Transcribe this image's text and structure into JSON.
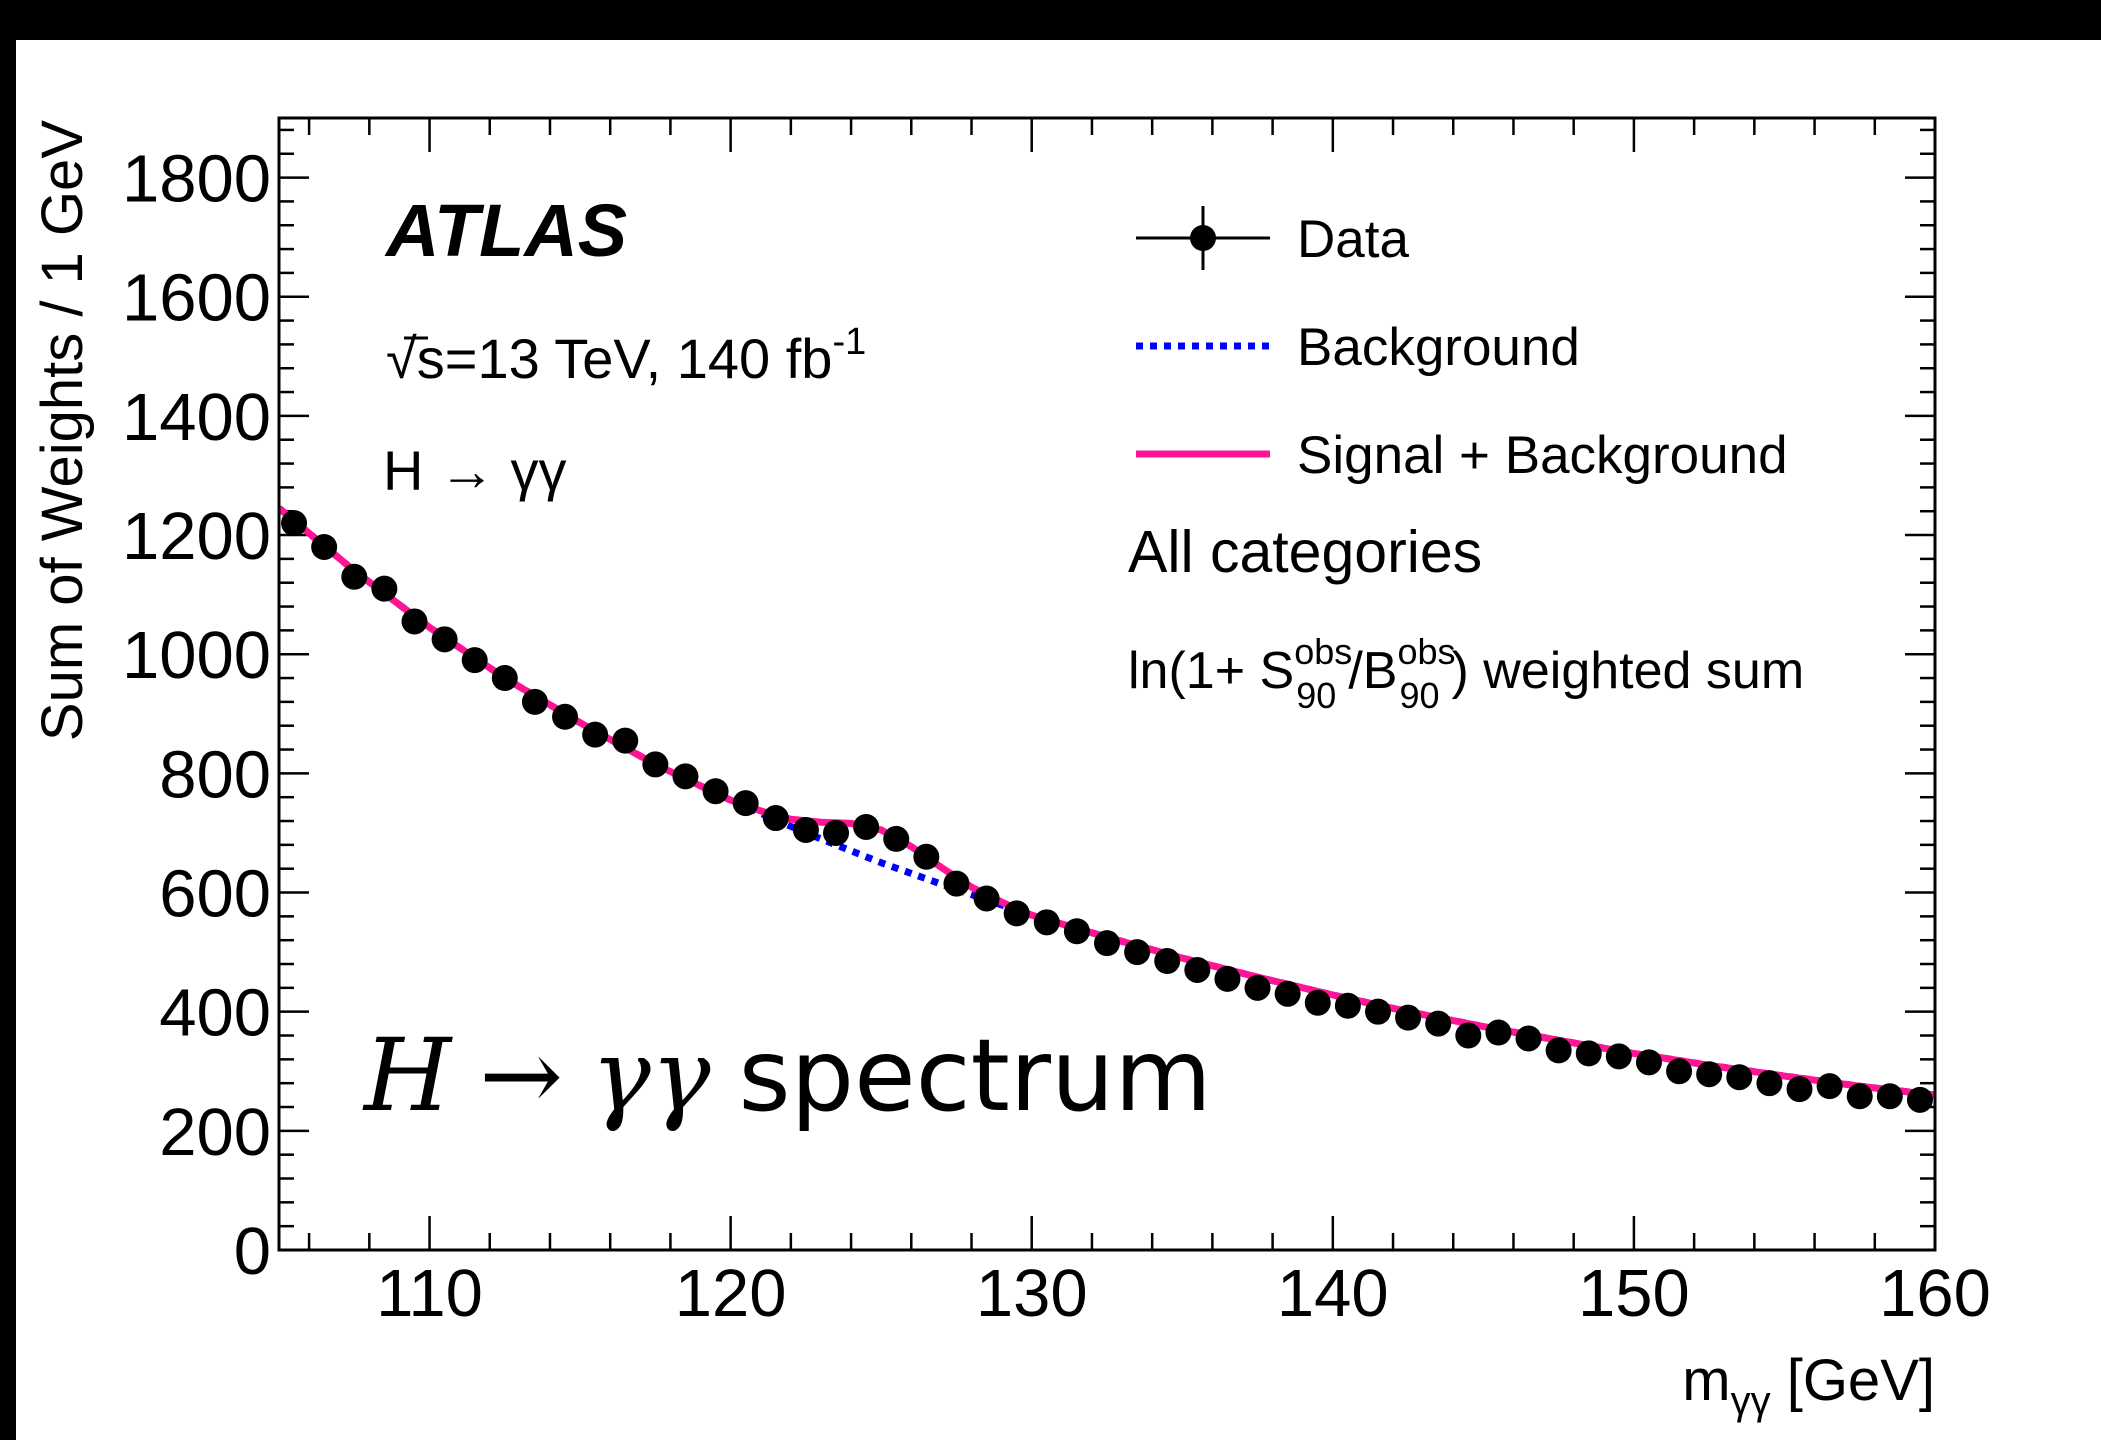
{
  "chart_data": {
    "type": "line",
    "title": [
      "H",
      "→",
      "γγ",
      "spectrum"
    ],
    "experiment": "ATLAS",
    "energy": {
      "text": "√s=13 TeV, 140 fb",
      "sup": "-1"
    },
    "process": "H → γγ",
    "category": "All categories",
    "weighting": {
      "pre": "ln(1+ S",
      "s_sup": "obs",
      "s_sub": "90",
      "mid": "/B",
      "b_sup": "obs",
      "b_sub": "90",
      "post": ") weighted sum"
    },
    "ylabel": "Sum of Weights / 1 GeV",
    "xlabel": {
      "main": "m",
      "sub": "γγ",
      "unit": " [GeV]"
    },
    "xlim": [
      105,
      160
    ],
    "xticks": [
      110,
      120,
      130,
      140,
      150,
      160
    ],
    "xminorticks": [
      106,
      108,
      112,
      114,
      116,
      118,
      122,
      124,
      126,
      128,
      132,
      134,
      136,
      138,
      142,
      144,
      146,
      148,
      152,
      154,
      156,
      158
    ],
    "ylim": [
      0,
      1900
    ],
    "yticks": [
      0,
      200,
      400,
      600,
      800,
      1000,
      1200,
      1400,
      1600,
      1800
    ],
    "yminorticks": [
      40,
      80,
      120,
      160,
      240,
      280,
      320,
      360,
      440,
      480,
      520,
      560,
      640,
      680,
      720,
      760,
      840,
      880,
      920,
      960,
      1040,
      1080,
      1120,
      1160,
      1240,
      1280,
      1320,
      1360,
      1440,
      1480,
      1520,
      1560,
      1640,
      1680,
      1720,
      1760,
      1840,
      1880
    ],
    "series": [
      {
        "name": "Data",
        "color": "#000000",
        "style": "points",
        "x": [
          105.5,
          106.5,
          107.5,
          108.5,
          109.5,
          110.5,
          111.5,
          112.5,
          113.5,
          114.5,
          115.5,
          116.5,
          117.5,
          118.5,
          119.5,
          120.5,
          121.5,
          122.5,
          123.5,
          124.5,
          125.5,
          126.5,
          127.5,
          128.5,
          129.5,
          130.5,
          131.5,
          132.5,
          133.5,
          134.5,
          135.5,
          136.5,
          137.5,
          138.5,
          139.5,
          140.5,
          141.5,
          142.5,
          143.5,
          144.5,
          145.5,
          146.5,
          147.5,
          148.5,
          149.5,
          150.5,
          151.5,
          152.5,
          153.5,
          154.5,
          155.5,
          156.5,
          157.5,
          158.5,
          159.5
        ],
        "values": [
          1220,
          1180,
          1130,
          1110,
          1055,
          1025,
          990,
          960,
          920,
          895,
          865,
          855,
          815,
          795,
          770,
          750,
          725,
          705,
          700,
          710,
          690,
          660,
          615,
          590,
          565,
          550,
          535,
          515,
          500,
          485,
          470,
          455,
          440,
          430,
          415,
          410,
          400,
          390,
          380,
          360,
          365,
          355,
          335,
          330,
          325,
          315,
          300,
          295,
          290,
          280,
          270,
          275,
          258,
          258,
          252
        ]
      },
      {
        "name": "Background",
        "color": "#0000ff",
        "style": "dotted",
        "x": [
          105,
          107.5,
          110,
          112.5,
          115,
          117.5,
          120,
          122.5,
          125,
          127.5,
          130,
          132.5,
          135,
          137.5,
          140,
          142.5,
          145,
          147.5,
          150,
          152.5,
          155,
          157.5,
          160
        ],
        "values": [
          1245,
          1140,
          1045,
          960,
          885,
          815,
          755,
          700,
          650,
          605,
          562,
          525,
          490,
          458,
          428,
          400,
          375,
          352,
          330,
          310,
          292,
          275,
          260
        ]
      },
      {
        "name": "Signal + Background",
        "color": "#ff1493",
        "style": "solid",
        "x": [
          105,
          107.5,
          110,
          112.5,
          115,
          117.5,
          120,
          121,
          122,
          123,
          124,
          125,
          126,
          127,
          128,
          129,
          130,
          132.5,
          135,
          137.5,
          140,
          142.5,
          145,
          147.5,
          150,
          152.5,
          155,
          157.5,
          160
        ],
        "values": [
          1245,
          1140,
          1045,
          960,
          885,
          815,
          755,
          737,
          723,
          718,
          716,
          705,
          677,
          642,
          609,
          584,
          562,
          525,
          490,
          458,
          428,
          400,
          375,
          352,
          330,
          310,
          292,
          275,
          260
        ]
      }
    ]
  }
}
